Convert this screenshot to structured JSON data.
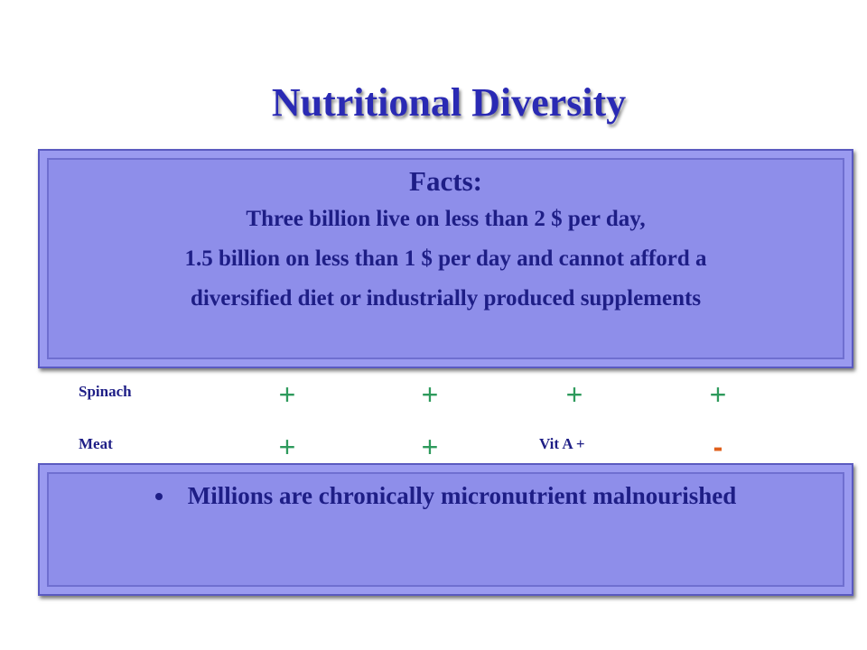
{
  "title": "Nutritional Diversity",
  "facts": {
    "heading": "Facts:",
    "lines": [
      "Three billion live on less than 2 $ per day,",
      "1.5 billion on less than 1 $ per day and cannot afford a",
      "diversified diet or  industrially produced supplements"
    ]
  },
  "rows": [
    {
      "label": "Spinach",
      "cells": [
        "+",
        "+",
        "+",
        "+"
      ]
    },
    {
      "label": "Meat",
      "cells": [
        "+",
        "+",
        "Vit A +",
        "-"
      ]
    }
  ],
  "bullets": [
    "Millions are chronically micronutrient malnourished"
  ]
}
